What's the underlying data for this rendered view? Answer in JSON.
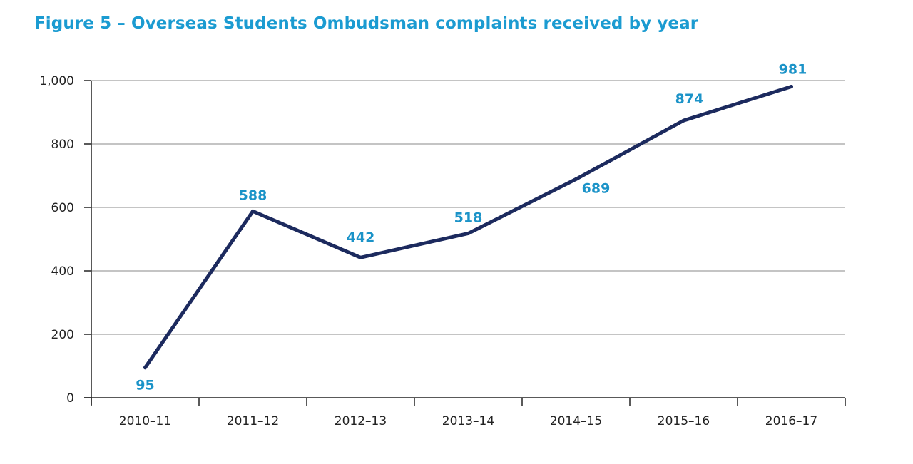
{
  "chart_data": {
    "type": "line",
    "title": "Figure 5 – Overseas Students Ombudsman complaints received by year",
    "xlabel": "",
    "ylabel": "",
    "categories": [
      "2010–11",
      "2011–12",
      "2012–13",
      "2013–14",
      "2014–15",
      "2015–16",
      "2016–17"
    ],
    "values": [
      95,
      588,
      442,
      518,
      689,
      874,
      981
    ],
    "data_labels": [
      "95",
      "588",
      "442",
      "518",
      "689",
      "874",
      "981"
    ],
    "ylim": [
      0,
      1000
    ],
    "yticks": [
      0,
      200,
      400,
      600,
      800,
      1000
    ],
    "ytick_labels": [
      "0",
      "200",
      "400",
      "600",
      "800",
      "1,000"
    ],
    "grid": "horizontal",
    "legend": "none",
    "colors": {
      "title": "#1b9bd1",
      "line": "#1c2a5e",
      "data_label": "#1b93c8",
      "grid": "#888888"
    }
  }
}
